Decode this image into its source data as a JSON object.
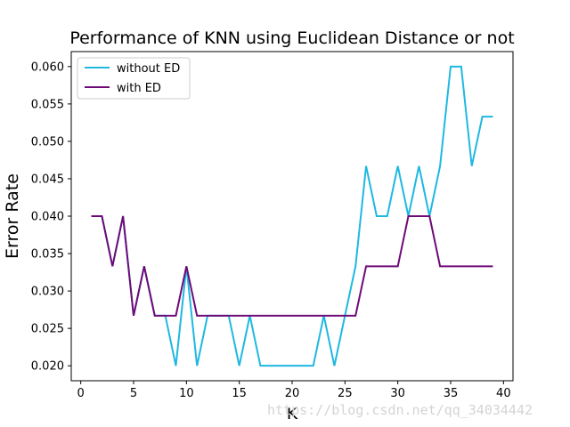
{
  "watermark": "https://blog.csdn.net/qq_34034442",
  "chart_data": {
    "type": "line",
    "title": "Performance of KNN using Euclidean Distance or not",
    "xlabel": "K",
    "ylabel": "Error Rate",
    "xlim": [
      -0.9,
      40.9
    ],
    "ylim": [
      0.018,
      0.062
    ],
    "xticks": [
      0,
      5,
      10,
      15,
      20,
      25,
      30,
      35,
      40
    ],
    "yticks": [
      0.02,
      0.025,
      0.03,
      0.035,
      0.04,
      0.045,
      0.05,
      0.055,
      0.06
    ],
    "grid": false,
    "legend_position": "top-left",
    "x": [
      1,
      2,
      3,
      4,
      5,
      6,
      7,
      8,
      9,
      10,
      11,
      12,
      13,
      14,
      15,
      16,
      17,
      18,
      19,
      20,
      21,
      22,
      23,
      24,
      25,
      26,
      27,
      28,
      29,
      30,
      31,
      32,
      33,
      34,
      35,
      36,
      37,
      38,
      39
    ],
    "series": [
      {
        "name": "without ED",
        "color": "#1fb8e0",
        "values": [
          0.04,
          0.04,
          0.0333,
          0.04,
          0.0267,
          0.0333,
          0.0267,
          0.0267,
          0.02,
          0.0333,
          0.02,
          0.0267,
          0.0267,
          0.0267,
          0.02,
          0.0267,
          0.02,
          0.02,
          0.02,
          0.02,
          0.02,
          0.02,
          0.0267,
          0.02,
          0.0267,
          0.0333,
          0.0467,
          0.04,
          0.04,
          0.0467,
          0.04,
          0.0467,
          0.04,
          0.0467,
          0.06,
          0.06,
          0.0467,
          0.0533,
          0.0533
        ]
      },
      {
        "name": "with ED",
        "color": "#6e0a78",
        "values": [
          0.04,
          0.04,
          0.0333,
          0.04,
          0.0267,
          0.0333,
          0.0267,
          0.0267,
          0.0267,
          0.0333,
          0.0267,
          0.0267,
          0.0267,
          0.0267,
          0.0267,
          0.0267,
          0.0267,
          0.0267,
          0.0267,
          0.0267,
          0.0267,
          0.0267,
          0.0267,
          0.0267,
          0.0267,
          0.0267,
          0.0333,
          0.0333,
          0.0333,
          0.0333,
          0.04,
          0.04,
          0.04,
          0.0333,
          0.0333,
          0.0333,
          0.0333,
          0.0333,
          0.0333
        ]
      }
    ]
  }
}
